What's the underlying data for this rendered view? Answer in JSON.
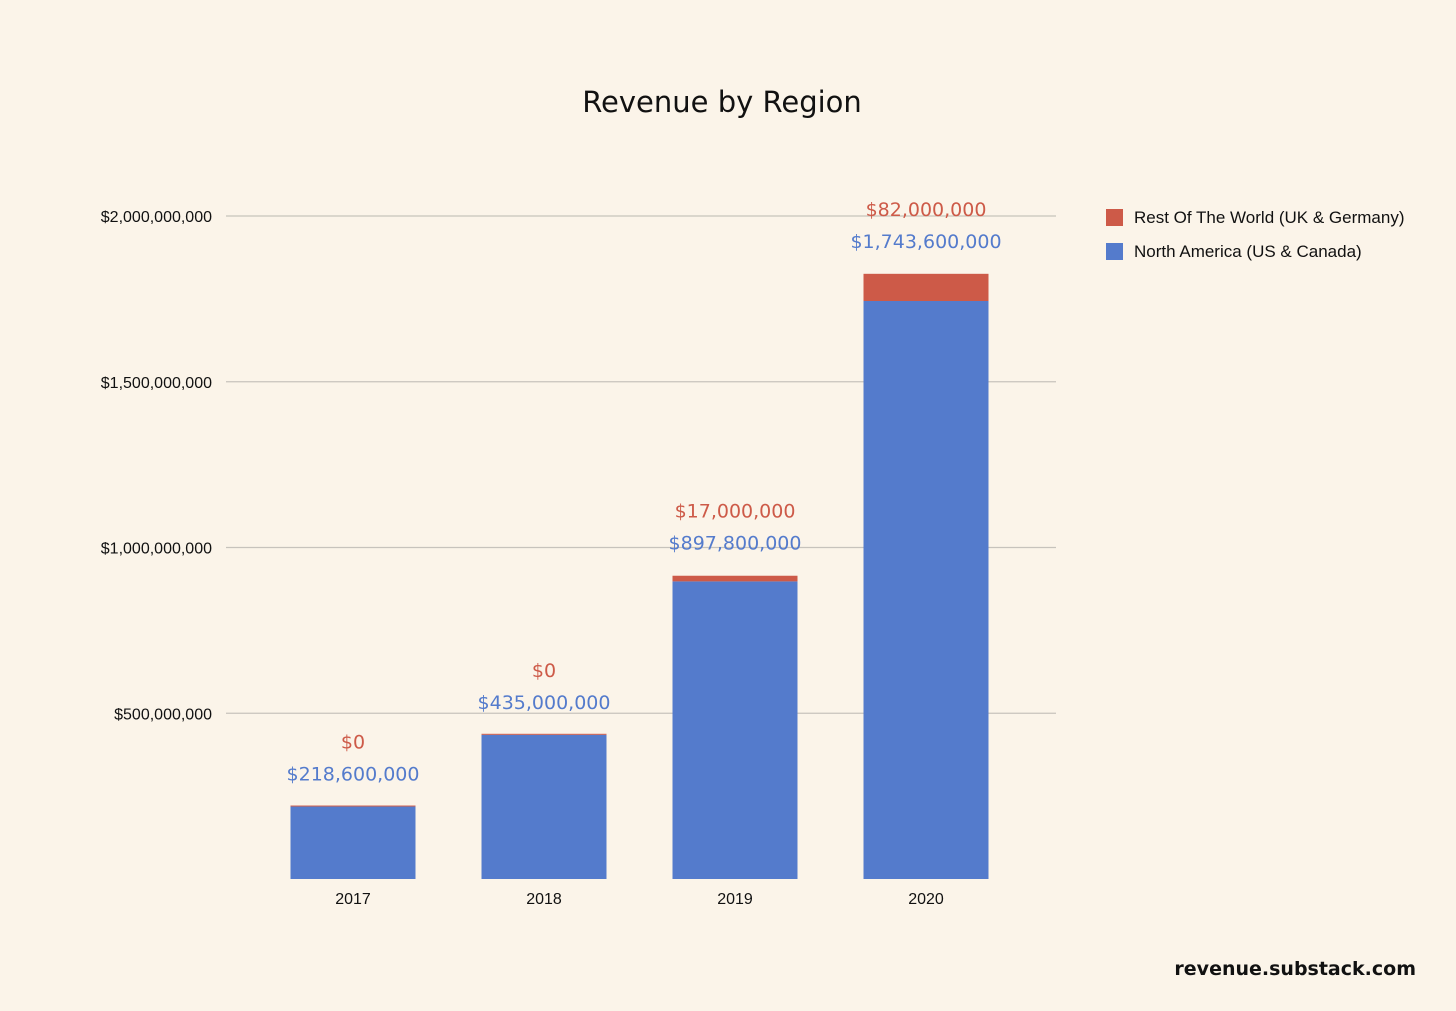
{
  "colors": {
    "background": "#fbf4e9",
    "north_america": "#547bcc",
    "rest_of_world": "#cd5a48",
    "gridline": "#c7c3bc"
  },
  "source": "revenue.substack.com",
  "chart_data": {
    "type": "bar",
    "stacked": true,
    "title": "Revenue by Region",
    "xlabel": "",
    "ylabel": "",
    "categories": [
      "2017",
      "2018",
      "2019",
      "2020"
    ],
    "series": [
      {
        "name": "North America (US & Canada)",
        "color": "#547bcc",
        "values": [
          218600000,
          435000000,
          897800000,
          1743600000
        ],
        "labels": [
          "$218,600,000",
          "$435,000,000",
          "$897,800,000",
          "$1,743,600,000"
        ]
      },
      {
        "name": "Rest Of The World (UK & Germany)",
        "color": "#cd5a48",
        "values": [
          0,
          0,
          17000000,
          82000000
        ],
        "labels": [
          "$0",
          "$0",
          "$17,000,000",
          "$82,000,000"
        ]
      }
    ],
    "ylim": [
      0,
      2000000000
    ],
    "yticks": [
      500000000,
      1000000000,
      1500000000,
      2000000000
    ],
    "ytick_labels": [
      "$500,000,000",
      "$1,000,000,000",
      "$1,500,000,000",
      "$2,000,000,000"
    ],
    "grid": true,
    "legend_position": "right-top"
  }
}
